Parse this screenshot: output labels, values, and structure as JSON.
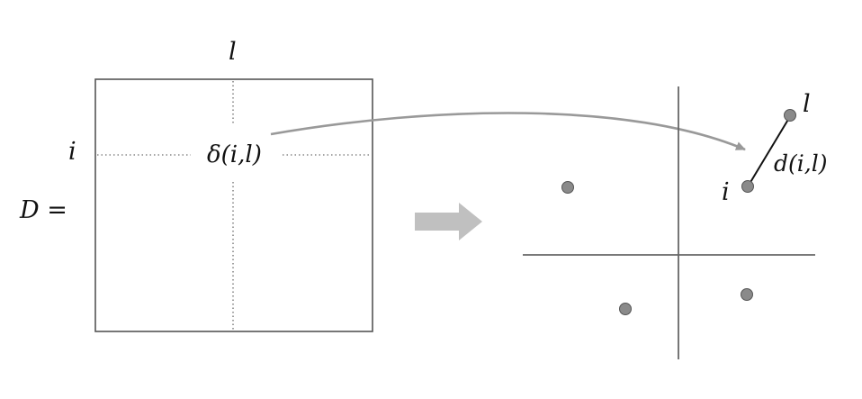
{
  "matrix": {
    "equation_label": "D =",
    "row_label": "i",
    "col_label": "l",
    "entry_label": "δ(i,l)"
  },
  "embedding": {
    "point_i_label": "i",
    "point_l_label": "l",
    "distance_label": "d(i,l)"
  },
  "colors": {
    "frame": "#555555",
    "dotted_guide": "#888888",
    "curve_arrow": "#999999",
    "big_arrow": "#c0c0c0",
    "axes": "#666666",
    "point_fill": "#8a8a8a",
    "point_stroke": "#555555",
    "distance_line": "#111111",
    "text": "#111111"
  }
}
